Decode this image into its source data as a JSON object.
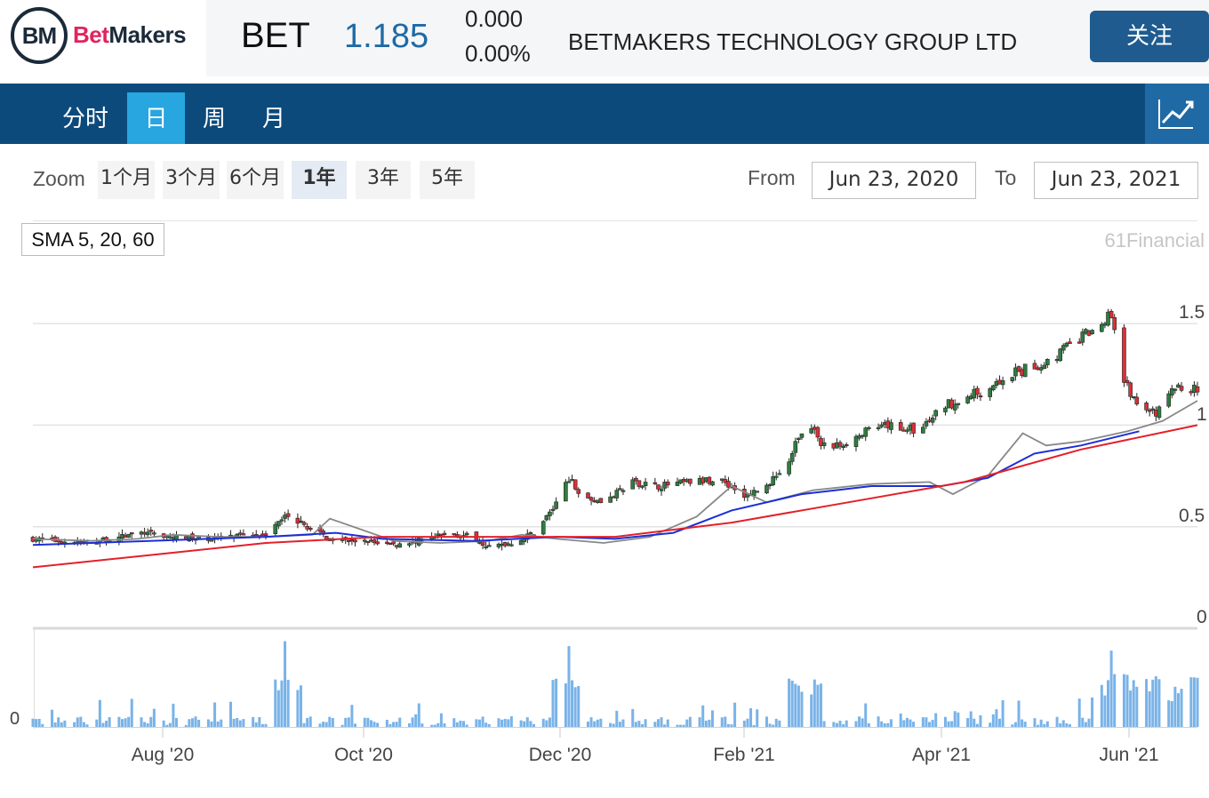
{
  "header": {
    "logo_text": "BM",
    "logo_bet": "Bet",
    "logo_makers": "Makers",
    "ticker": "BET",
    "price": "1.185",
    "change": "0.000",
    "change_pct": "0.00%",
    "company": "BETMAKERS TECHNOLOGY GROUP LTD",
    "follow_label": "关注"
  },
  "nav": {
    "tabs": [
      {
        "label": "分时",
        "active": false
      },
      {
        "label": "日",
        "active": true
      },
      {
        "label": "周",
        "active": false
      },
      {
        "label": "月",
        "active": false
      }
    ],
    "chart_toggle_icon": "line-chart-icon"
  },
  "controls": {
    "zoom_label": "Zoom",
    "zoom_options": [
      "1个月",
      "3个月",
      "6个月",
      "1年",
      "3年",
      "5年"
    ],
    "zoom_selected": "1年",
    "from_label": "From",
    "from_date": "Jun 23, 2020",
    "to_label": "To",
    "to_date": "Jun 23, 2021"
  },
  "indicator_label": "SMA 5, 20, 60",
  "credit": "61Financial",
  "colors": {
    "up": "#2f7d3f",
    "down": "#d9303a",
    "sma5": "#888888",
    "sma20": "#1b2fd6",
    "sma60": "#e3202a",
    "volume": "#79b3e8",
    "nav_bg": "#0d4a7c",
    "tab_active": "#27a6e0"
  },
  "chart_data": {
    "type": "candlestick",
    "date_range": [
      "2020-06-23",
      "2021-06-23"
    ],
    "price_axis": {
      "ticks": [
        "1.5",
        "1",
        "0.5",
        "0"
      ],
      "ylim": [
        0,
        1.6
      ]
    },
    "volume_axis": {
      "ticks": [
        "0"
      ]
    },
    "x_ticks": [
      "Aug '20",
      "Oct '20",
      "Dec '20",
      "Feb '21",
      "Apr '21",
      "Jun '21"
    ],
    "grid": true,
    "close_series": [
      [
        "2020-06-23",
        0.44
      ],
      [
        "2020-07-01",
        0.43
      ],
      [
        "2020-07-10",
        0.42
      ],
      [
        "2020-07-20",
        0.45
      ],
      [
        "2020-07-28",
        0.47
      ],
      [
        "2020-08-05",
        0.45
      ],
      [
        "2020-08-15",
        0.44
      ],
      [
        "2020-08-25",
        0.45
      ],
      [
        "2020-09-05",
        0.47
      ],
      [
        "2020-09-10",
        0.56
      ],
      [
        "2020-09-17",
        0.5
      ],
      [
        "2020-09-25",
        0.43
      ],
      [
        "2020-10-05",
        0.43
      ],
      [
        "2020-10-15",
        0.41
      ],
      [
        "2020-10-25",
        0.44
      ],
      [
        "2020-11-01",
        0.47
      ],
      [
        "2020-11-08",
        0.45
      ],
      [
        "2020-11-13",
        0.4
      ],
      [
        "2020-11-20",
        0.42
      ],
      [
        "2020-11-27",
        0.47
      ],
      [
        "2020-12-03",
        0.59
      ],
      [
        "2020-12-08",
        0.74
      ],
      [
        "2020-12-13",
        0.64
      ],
      [
        "2020-12-20",
        0.63
      ],
      [
        "2020-12-28",
        0.72
      ],
      [
        "2021-01-05",
        0.7
      ],
      [
        "2021-01-15",
        0.72
      ],
      [
        "2021-01-25",
        0.73
      ],
      [
        "2021-02-01",
        0.65
      ],
      [
        "2021-02-08",
        0.7
      ],
      [
        "2021-02-15",
        0.82
      ],
      [
        "2021-02-20",
        1.02
      ],
      [
        "2021-02-27",
        0.88
      ],
      [
        "2021-03-05",
        0.92
      ],
      [
        "2021-03-12",
        0.97
      ],
      [
        "2021-03-20",
        1.0
      ],
      [
        "2021-03-28",
        0.97
      ],
      [
        "2021-04-05",
        1.1
      ],
      [
        "2021-04-15",
        1.16
      ],
      [
        "2021-04-25",
        1.24
      ],
      [
        "2021-05-05",
        1.3
      ],
      [
        "2021-05-15",
        1.4
      ],
      [
        "2021-05-22",
        1.48
      ],
      [
        "2021-05-27",
        1.55
      ],
      [
        "2021-05-31",
        1.23
      ],
      [
        "2021-06-05",
        1.08
      ],
      [
        "2021-06-10",
        1.05
      ],
      [
        "2021-06-15",
        1.17
      ],
      [
        "2021-06-20",
        1.19
      ],
      [
        "2021-06-23",
        1.185
      ]
    ],
    "series": [
      {
        "name": "SMA 5",
        "values": [
          [
            0,
            0.44
          ],
          [
            0.05,
            0.43
          ],
          [
            0.09,
            0.44
          ],
          [
            0.12,
            0.46
          ],
          [
            0.16,
            0.45
          ],
          [
            0.2,
            0.45
          ],
          [
            0.24,
            0.46
          ],
          [
            0.255,
            0.54
          ],
          [
            0.28,
            0.49
          ],
          [
            0.31,
            0.43
          ],
          [
            0.35,
            0.42
          ],
          [
            0.39,
            0.43
          ],
          [
            0.42,
            0.46
          ],
          [
            0.45,
            0.44
          ],
          [
            0.49,
            0.42
          ],
          [
            0.53,
            0.45
          ],
          [
            0.57,
            0.55
          ],
          [
            0.6,
            0.7
          ],
          [
            0.63,
            0.62
          ],
          [
            0.67,
            0.68
          ],
          [
            0.72,
            0.71
          ],
          [
            0.77,
            0.72
          ],
          [
            0.79,
            0.66
          ],
          [
            0.82,
            0.75
          ],
          [
            0.85,
            0.96
          ],
          [
            0.87,
            0.9
          ],
          [
            0.9,
            0.92
          ],
          [
            0.94,
            0.97
          ],
          [
            0.97,
            1.02
          ],
          [
            1.0,
            1.12
          ]
        ]
      },
      {
        "name": "SMA 20",
        "values": [
          [
            0,
            0.41
          ],
          [
            0.1,
            0.43
          ],
          [
            0.2,
            0.45
          ],
          [
            0.26,
            0.47
          ],
          [
            0.3,
            0.44
          ],
          [
            0.38,
            0.43
          ],
          [
            0.45,
            0.45
          ],
          [
            0.5,
            0.44
          ],
          [
            0.55,
            0.47
          ],
          [
            0.6,
            0.58
          ],
          [
            0.66,
            0.66
          ],
          [
            0.72,
            0.7
          ],
          [
            0.78,
            0.7
          ],
          [
            0.82,
            0.74
          ],
          [
            0.86,
            0.86
          ],
          [
            0.9,
            0.9
          ],
          [
            0.95,
            0.97
          ]
        ]
      },
      {
        "name": "SMA 60",
        "values": [
          [
            0,
            0.3
          ],
          [
            0.1,
            0.36
          ],
          [
            0.2,
            0.42
          ],
          [
            0.3,
            0.45
          ],
          [
            0.4,
            0.45
          ],
          [
            0.5,
            0.45
          ],
          [
            0.6,
            0.52
          ],
          [
            0.7,
            0.62
          ],
          [
            0.8,
            0.72
          ],
          [
            0.9,
            0.88
          ],
          [
            1.0,
            1.0
          ]
        ]
      }
    ],
    "volume_peaks": [
      "2020-09-10",
      "2020-12-08",
      "2021-02-20",
      "2021-05-27"
    ]
  }
}
